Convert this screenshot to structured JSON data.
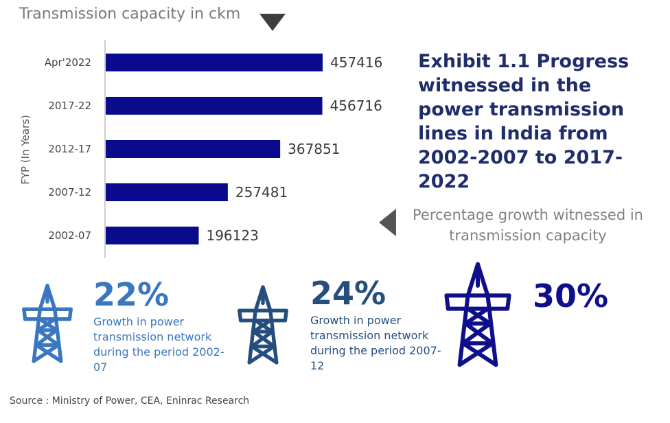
{
  "chart_data": {
    "type": "bar",
    "orientation": "horizontal",
    "title": "Transmission capacity in ckm",
    "ylabel": "FYP (In Years)",
    "categories": [
      "Apr'2022",
      "2017-22",
      "2012-17",
      "2007-12",
      "2002-07"
    ],
    "values": [
      457416,
      456716,
      367851,
      257481,
      196123
    ],
    "bar_color": "#0a0a8c",
    "grid": false
  },
  "exhibit": {
    "title": "Exhibit 1.1  Progress witnessed in the power transmission lines in India from 2002-2007 to 2017-2022"
  },
  "growth_caption": "Percentage growth witnessed in transmission capacity",
  "growth": [
    {
      "percent": "22%",
      "description": "Growth in power transmission network during the period 2002-07",
      "color": "#3a77c0",
      "icon": "transmission-tower-icon"
    },
    {
      "percent": "24%",
      "description": "Growth in power transmission network during the period 2007-12",
      "color": "#254e7e",
      "icon": "transmission-tower-icon"
    },
    {
      "percent": "30%",
      "description": "",
      "color": "#0f0f8c",
      "icon": "transmission-tower-icon"
    }
  ],
  "source": "Source : Ministry of Power, CEA, Eninrac Research"
}
